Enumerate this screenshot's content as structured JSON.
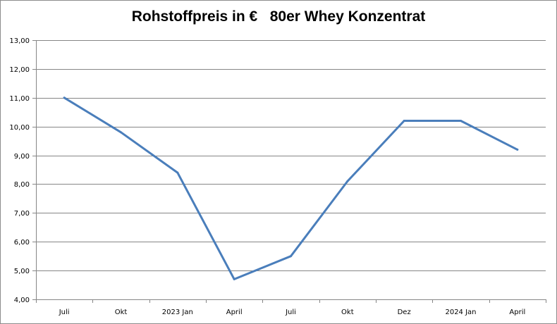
{
  "chart_data": {
    "type": "line",
    "title": "Rohstoffpreis in €   80er Whey Konzentrat",
    "categories": [
      "Juli",
      "Okt",
      "2023 Jan",
      "April",
      "Juli",
      "Okt",
      "Dez",
      "2024 Jan",
      "April"
    ],
    "series": [
      {
        "values": [
          11.0,
          9.8,
          8.4,
          4.7,
          5.5,
          8.1,
          10.2,
          10.2,
          9.2
        ],
        "color": "#4a7ebb"
      }
    ],
    "y_ticks": [
      "4,00",
      "5,00",
      "6,00",
      "7,00",
      "8,00",
      "9,00",
      "10,00",
      "11,00",
      "12,00",
      "13,00"
    ],
    "ylim": [
      4,
      13
    ],
    "ystep": 1,
    "grid": true,
    "legend": "none",
    "colors": {
      "line": "#4a7ebb",
      "grid": "#868686",
      "axis": "#868686"
    }
  }
}
